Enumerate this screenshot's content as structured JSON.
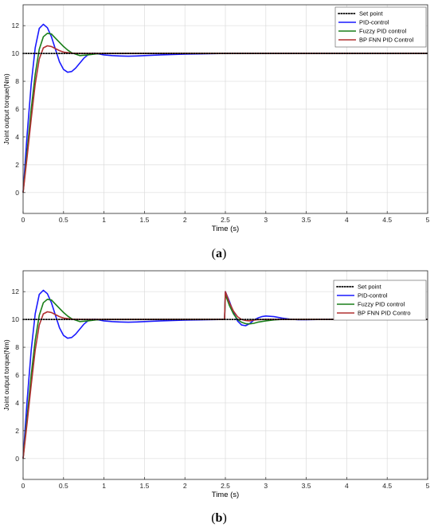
{
  "chart_data": [
    {
      "type": "line",
      "panel_caption": "a",
      "xlabel": "Time (s)",
      "ylabel": "Joint output torque(Nm)",
      "xlim": [
        0,
        5
      ],
      "ylim": [
        -1.5,
        13.5
      ],
      "xticks": [
        "0",
        "0.5",
        "1",
        "1.5",
        "2",
        "2.5",
        "3",
        "3.5",
        "4",
        "4.5",
        "5"
      ],
      "yticks": [
        "0",
        "2",
        "4",
        "6",
        "8",
        "10",
        "12"
      ],
      "grid": true,
      "legend_position": "top-right",
      "series": [
        {
          "name": "Set point",
          "color": "#000000",
          "style": "dotted",
          "x": [
            0,
            5
          ],
          "y": [
            10,
            10
          ]
        },
        {
          "name": "PID-control",
          "color": "#1a1aff",
          "style": "solid",
          "x": [
            0,
            0.05,
            0.1,
            0.15,
            0.2,
            0.25,
            0.3,
            0.35,
            0.4,
            0.45,
            0.5,
            0.55,
            0.6,
            0.65,
            0.7,
            0.75,
            0.8,
            0.85,
            0.9,
            0.95,
            1.0,
            1.1,
            1.2,
            1.3,
            1.4,
            1.5,
            1.7,
            2.0,
            2.5,
            3.0,
            5.0
          ],
          "y": [
            0,
            4.2,
            7.8,
            10.4,
            11.8,
            12.1,
            11.85,
            11.2,
            10.3,
            9.4,
            8.85,
            8.65,
            8.7,
            8.95,
            9.3,
            9.65,
            9.9,
            10.0,
            10.0,
            9.95,
            9.9,
            9.85,
            9.82,
            9.8,
            9.82,
            9.85,
            9.9,
            9.95,
            10.0,
            10.0,
            10.0
          ]
        },
        {
          "name": "Fuzzy PID control",
          "color": "#1a7f1a",
          "style": "solid",
          "x": [
            0,
            0.05,
            0.1,
            0.15,
            0.2,
            0.25,
            0.3,
            0.35,
            0.4,
            0.45,
            0.5,
            0.55,
            0.6,
            0.7,
            0.8,
            0.9,
            1.0,
            1.2,
            1.5,
            2.0,
            5.0
          ],
          "y": [
            0,
            3.0,
            6.0,
            8.5,
            10.3,
            11.2,
            11.45,
            11.4,
            11.1,
            10.8,
            10.5,
            10.25,
            10.05,
            9.85,
            9.9,
            9.97,
            10.0,
            10.0,
            10.0,
            10.0,
            10.0
          ]
        },
        {
          "name": "BP FNN PID Control",
          "color": "#b03030",
          "style": "solid",
          "x": [
            0,
            0.05,
            0.1,
            0.15,
            0.2,
            0.25,
            0.3,
            0.35,
            0.4,
            0.45,
            0.5,
            0.6,
            0.7,
            0.8,
            1.0,
            5.0
          ],
          "y": [
            0,
            2.6,
            5.3,
            7.8,
            9.6,
            10.4,
            10.55,
            10.5,
            10.35,
            10.2,
            10.1,
            10.02,
            10.0,
            10.0,
            10.0,
            10.0
          ]
        }
      ]
    },
    {
      "type": "line",
      "panel_caption": "b",
      "xlabel": "Time (s)",
      "ylabel": "Joint output torque(Nm)",
      "xlim": [
        0,
        5
      ],
      "ylim": [
        -1.5,
        13.5
      ],
      "xticks": [
        "0",
        "0.5",
        "1",
        "1.5",
        "2",
        "2.5",
        "3",
        "3.5",
        "4",
        "4.5",
        "5"
      ],
      "yticks": [
        "0",
        "2",
        "4",
        "6",
        "8",
        "10",
        "12"
      ],
      "grid": true,
      "legend_position": "top-right",
      "series": [
        {
          "name": "Set point",
          "color": "#000000",
          "style": "dotted",
          "x": [
            0,
            5
          ],
          "y": [
            10,
            10
          ]
        },
        {
          "name": "PID-control",
          "color": "#1a1aff",
          "style": "solid",
          "x": [
            0,
            0.05,
            0.1,
            0.15,
            0.2,
            0.25,
            0.3,
            0.35,
            0.4,
            0.45,
            0.5,
            0.55,
            0.6,
            0.65,
            0.7,
            0.75,
            0.8,
            0.85,
            0.9,
            0.95,
            1.0,
            1.1,
            1.2,
            1.3,
            1.4,
            1.5,
            1.7,
            2.0,
            2.49,
            2.5,
            2.55,
            2.6,
            2.65,
            2.7,
            2.75,
            2.8,
            2.85,
            2.9,
            2.95,
            3.0,
            3.1,
            3.2,
            3.3,
            3.4,
            3.5,
            3.7,
            4.0,
            5.0
          ],
          "y": [
            0,
            4.2,
            7.8,
            10.4,
            11.8,
            12.1,
            11.85,
            11.2,
            10.3,
            9.4,
            8.85,
            8.65,
            8.7,
            8.95,
            9.3,
            9.65,
            9.9,
            10.0,
            10.0,
            9.95,
            9.9,
            9.85,
            9.82,
            9.8,
            9.82,
            9.85,
            9.9,
            9.95,
            10.0,
            12.0,
            11.3,
            10.5,
            9.9,
            9.6,
            9.55,
            9.7,
            9.95,
            10.1,
            10.2,
            10.25,
            10.2,
            10.1,
            10.02,
            9.98,
            9.98,
            10.0,
            10.0,
            10.0
          ]
        },
        {
          "name": "Fuzzy PID control",
          "color": "#1a7f1a",
          "style": "solid",
          "x": [
            0,
            0.05,
            0.1,
            0.15,
            0.2,
            0.25,
            0.3,
            0.35,
            0.4,
            0.45,
            0.5,
            0.55,
            0.6,
            0.7,
            0.8,
            0.9,
            1.0,
            1.2,
            1.5,
            2.0,
            2.49,
            2.5,
            2.55,
            2.6,
            2.65,
            2.7,
            2.75,
            2.8,
            2.85,
            2.9,
            3.0,
            3.1,
            3.2,
            3.3,
            3.5,
            5.0
          ],
          "y": [
            0,
            3.0,
            6.0,
            8.5,
            10.3,
            11.2,
            11.45,
            11.4,
            11.1,
            10.8,
            10.5,
            10.25,
            10.05,
            9.85,
            9.9,
            9.97,
            10.0,
            10.0,
            10.0,
            10.0,
            10.0,
            11.8,
            11.0,
            10.4,
            10.0,
            9.8,
            9.7,
            9.68,
            9.72,
            9.8,
            9.9,
            9.97,
            10.0,
            10.0,
            10.0,
            10.0
          ]
        },
        {
          "name": "BP FNN PID Contro",
          "color": "#b03030",
          "style": "solid",
          "x": [
            0,
            0.05,
            0.1,
            0.15,
            0.2,
            0.25,
            0.3,
            0.35,
            0.4,
            0.45,
            0.5,
            0.6,
            0.7,
            0.8,
            1.0,
            2.49,
            2.5,
            2.55,
            2.6,
            2.65,
            2.7,
            2.75,
            2.8,
            2.85,
            2.9,
            3.0,
            3.2,
            5.0
          ],
          "y": [
            0,
            2.6,
            5.3,
            7.8,
            9.6,
            10.4,
            10.55,
            10.5,
            10.35,
            10.2,
            10.1,
            10.02,
            10.0,
            10.0,
            10.0,
            10.0,
            12.0,
            11.2,
            10.6,
            10.2,
            10.0,
            9.92,
            9.9,
            9.95,
            9.98,
            10.0,
            10.0,
            10.0
          ]
        }
      ]
    }
  ]
}
